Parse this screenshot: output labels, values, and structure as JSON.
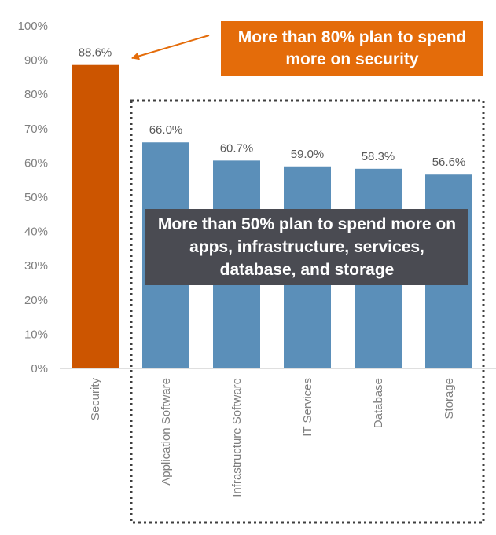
{
  "chart_data": {
    "type": "bar",
    "categories": [
      "Security",
      "Application Software",
      "Infrastructure Software",
      "IT Services",
      "Database",
      "Storage"
    ],
    "values": [
      88.6,
      66.0,
      60.7,
      59.0,
      58.3,
      56.6
    ],
    "value_labels": [
      "88.6%",
      "66.0%",
      "60.7%",
      "59.0%",
      "58.3%",
      "56.6%"
    ],
    "y_ticks": [
      "0%",
      "10%",
      "20%",
      "30%",
      "40%",
      "50%",
      "60%",
      "70%",
      "80%",
      "90%",
      "100%"
    ],
    "ylim": [
      0,
      100
    ],
    "grid": false,
    "title": "",
    "xlabel": "",
    "ylabel": "",
    "colors": {
      "highlight": "#cc5500",
      "bars": "#5b8fb9",
      "axis": "#bfbfbf",
      "label_text": "#7f7f7f"
    },
    "annotations": [
      {
        "text": "More than 80% plan to spend more on security",
        "background": "#e46c0a"
      },
      {
        "text": "More than 50% plan to spend more on apps, infrastructure, services, database, and storage",
        "background": "#4a4b52"
      }
    ]
  }
}
